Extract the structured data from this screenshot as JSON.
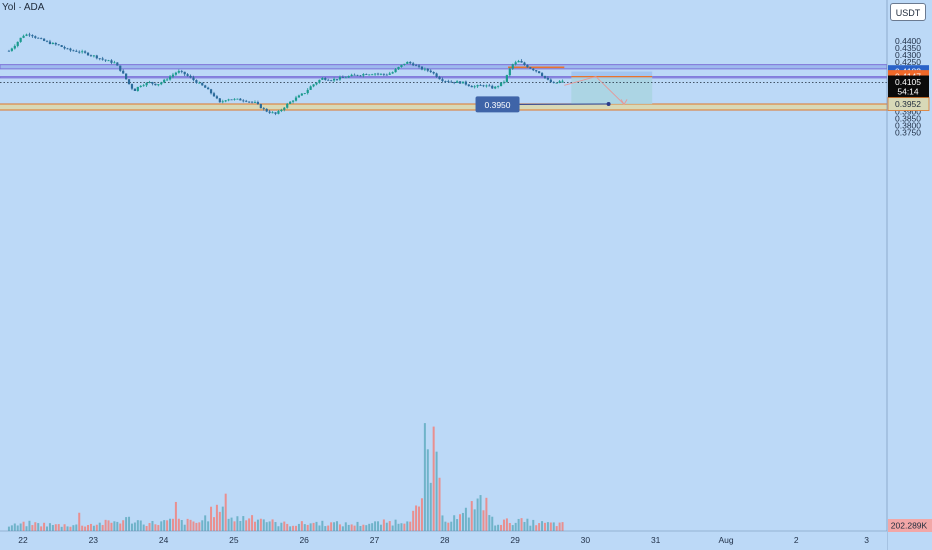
{
  "header": {
    "symbol": "Yol · ADA",
    "unit": "USDT"
  },
  "colors": {
    "background": "#bcd9f7",
    "up": "#1a9a8e",
    "down": "#2a6a9a",
    "resistance_zone": "#9db9ee",
    "support_zone": "#d8d9b7",
    "support_line": "#e0782a",
    "target_box": "#a9d3e0",
    "stop_box": "#9fc2ef",
    "price_badge": "#0b0b0b",
    "entry_badge": "#f0692a",
    "blue_badge": "#2a62c8",
    "support_badge": "#d8d9b7",
    "volume_up": "#6fb3c9",
    "volume_down": "#e98f8f"
  },
  "chart_data": {
    "type": "candlestick",
    "symbol": "Yol · ADA",
    "currency": "USDT",
    "ylim": [
      0.3705,
      0.4465
    ],
    "x_ticks": [
      "22",
      "23",
      "24",
      "25",
      "26",
      "27",
      "28",
      "29",
      "30",
      "31",
      "Aug",
      "2",
      "3"
    ],
    "y_ticks": [
      "0.4400",
      "0.4350",
      "0.4300",
      "0.4250",
      "0.4200",
      "0.4150",
      "0.4100",
      "0.4050",
      "0.4000",
      "0.3950",
      "0.3900",
      "0.3850",
      "0.3800",
      "0.3750"
    ],
    "path": [
      [
        21.8,
        0.433
      ],
      [
        21.9,
        0.438
      ],
      [
        22.0,
        0.444
      ],
      [
        22.1,
        0.445
      ],
      [
        22.2,
        0.442
      ],
      [
        22.35,
        0.439
      ],
      [
        22.5,
        0.437
      ],
      [
        22.65,
        0.4335
      ],
      [
        22.8,
        0.4325
      ],
      [
        23.0,
        0.4295
      ],
      [
        23.15,
        0.4265
      ],
      [
        23.3,
        0.4245
      ],
      [
        23.4,
        0.4185
      ],
      [
        23.5,
        0.41
      ],
      [
        23.58,
        0.4045
      ],
      [
        23.66,
        0.4085
      ],
      [
        23.8,
        0.4105
      ],
      [
        23.9,
        0.409
      ],
      [
        24.0,
        0.4115
      ],
      [
        24.1,
        0.415
      ],
      [
        24.2,
        0.4185
      ],
      [
        24.3,
        0.4165
      ],
      [
        24.45,
        0.4115
      ],
      [
        24.6,
        0.4065
      ],
      [
        24.72,
        0.401
      ],
      [
        24.8,
        0.396
      ],
      [
        24.9,
        0.399
      ],
      [
        25.0,
        0.3985
      ],
      [
        25.15,
        0.398
      ],
      [
        25.3,
        0.396
      ],
      [
        25.45,
        0.3905
      ],
      [
        25.6,
        0.388
      ],
      [
        25.7,
        0.3925
      ],
      [
        25.82,
        0.3975
      ],
      [
        26.0,
        0.403
      ],
      [
        26.1,
        0.408
      ],
      [
        26.25,
        0.4135
      ],
      [
        26.4,
        0.4125
      ],
      [
        26.55,
        0.414
      ],
      [
        26.7,
        0.4155
      ],
      [
        26.85,
        0.4165
      ],
      [
        27.0,
        0.417
      ],
      [
        27.15,
        0.416
      ],
      [
        27.25,
        0.4175
      ],
      [
        27.35,
        0.4215
      ],
      [
        27.45,
        0.425
      ],
      [
        27.55,
        0.4235
      ],
      [
        27.65,
        0.4205
      ],
      [
        27.8,
        0.4185
      ],
      [
        27.95,
        0.4125
      ],
      [
        28.1,
        0.411
      ],
      [
        28.25,
        0.4105
      ],
      [
        28.4,
        0.4075
      ],
      [
        28.55,
        0.4085
      ],
      [
        28.7,
        0.4065
      ],
      [
        28.85,
        0.4115
      ],
      [
        28.95,
        0.423
      ],
      [
        29.05,
        0.4255
      ],
      [
        29.15,
        0.4225
      ],
      [
        29.25,
        0.42
      ],
      [
        29.35,
        0.4175
      ],
      [
        29.45,
        0.4125
      ],
      [
        29.55,
        0.4095
      ],
      [
        29.65,
        0.4115
      ],
      [
        29.7,
        0.411
      ]
    ],
    "volume_path": [
      [
        21.8,
        6
      ],
      [
        22.1,
        9
      ],
      [
        22.5,
        7
      ],
      [
        23.0,
        8
      ],
      [
        23.3,
        11
      ],
      [
        23.5,
        14
      ],
      [
        23.8,
        9
      ],
      [
        24.15,
        12
      ],
      [
        24.5,
        10
      ],
      [
        24.75,
        26
      ],
      [
        25.0,
        14
      ],
      [
        25.3,
        18
      ],
      [
        25.6,
        9
      ],
      [
        25.85,
        8
      ],
      [
        26.2,
        10
      ],
      [
        26.6,
        8
      ],
      [
        27.0,
        9
      ],
      [
        27.4,
        12
      ],
      [
        27.7,
        30
      ],
      [
        27.78,
        120
      ],
      [
        28.0,
        14
      ],
      [
        28.3,
        18
      ],
      [
        28.45,
        40
      ],
      [
        28.7,
        10
      ],
      [
        29.0,
        12
      ],
      [
        29.4,
        9
      ],
      [
        29.7,
        8
      ]
    ],
    "volume_spikes": [
      [
        22.78,
        22
      ],
      [
        24.18,
        35
      ],
      [
        24.88,
        45
      ],
      [
        27.72,
        130
      ],
      [
        27.78,
        58
      ],
      [
        28.32,
        28
      ],
      [
        28.58,
        40
      ]
    ],
    "zones": [
      {
        "kind": "resistance",
        "from": 0.4202,
        "to": 0.4232
      },
      {
        "kind": "resistance",
        "from": 0.4138,
        "to": 0.4147
      },
      {
        "kind": "support",
        "from": 0.391,
        "to": 0.3952
      }
    ],
    "current_price": 0.4105,
    "levels": [
      {
        "value": 0.4182,
        "label": "0.4182",
        "style": "blue"
      },
      {
        "value": 0.4147,
        "label": "0.4147",
        "style": "orange"
      },
      {
        "value": 0.4105,
        "label": "0.4105",
        "sub": "54:14",
        "style": "black"
      },
      {
        "value": 0.3952,
        "label": "0.3952",
        "style": "support"
      }
    ],
    "volume_label": "202.289K",
    "position": {
      "x_from": 29.8,
      "x_to": 30.95,
      "top": 0.4183,
      "entry": 0.4147,
      "target": 0.3952
    },
    "annotation": {
      "label": "0.3950",
      "price": 0.395,
      "day": 28.75,
      "end_day": 30.33,
      "end_price": 0.3952
    },
    "arrows": [
      [
        [
          29.7,
          0.4085
        ],
        [
          30.15,
          0.4147
        ],
        [
          30.55,
          0.395
        ]
      ]
    ]
  }
}
